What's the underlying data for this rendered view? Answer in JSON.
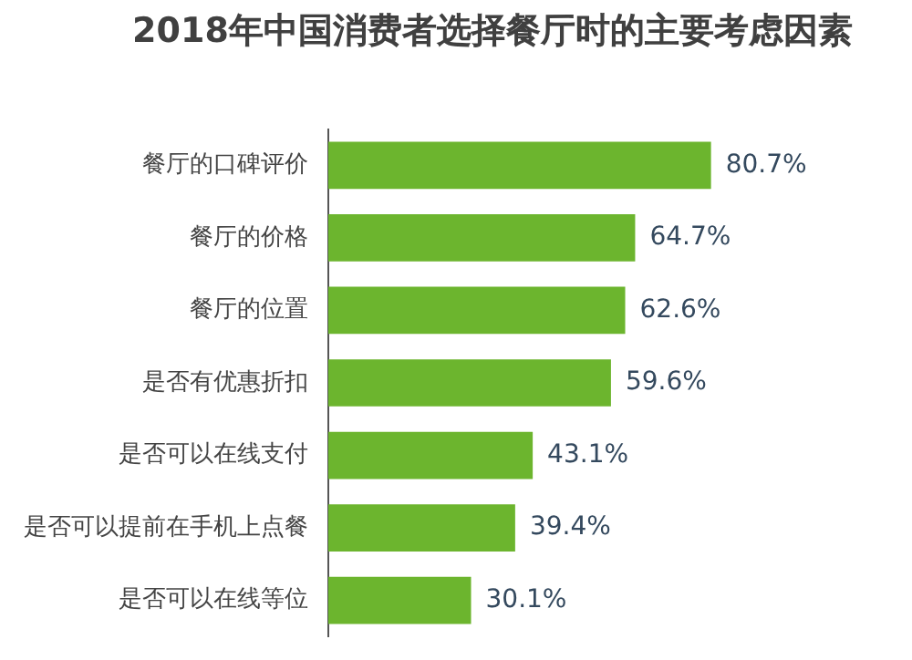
{
  "chart_data": {
    "type": "bar",
    "orientation": "horizontal",
    "title": "2018年中国消费者选择餐厅时的主要考虑因素",
    "categories": [
      "餐厅的口碑评价",
      "餐厅的价格",
      "餐厅的位置",
      "是否有优惠折扣",
      "是否可以在线支付",
      "是否可以提前在手机上点餐",
      "是否可以在线等位"
    ],
    "values": [
      80.7,
      64.7,
      62.6,
      59.6,
      43.1,
      39.4,
      30.1
    ],
    "value_labels": [
      "80.7%",
      "64.7%",
      "62.6%",
      "59.6%",
      "43.1%",
      "39.4%",
      "30.1%"
    ],
    "color": "#6cb52e",
    "legend": false,
    "tick_labels": "y"
  }
}
